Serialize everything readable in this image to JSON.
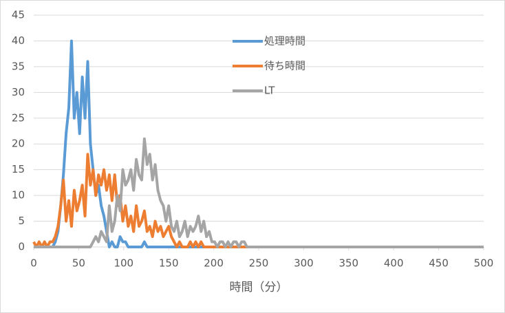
{
  "chart_data": {
    "type": "line",
    "xlabel": "時間（分）",
    "x": [
      0,
      3,
      6,
      9,
      12,
      15,
      18,
      21,
      24,
      27,
      30,
      33,
      36,
      39,
      42,
      45,
      48,
      51,
      54,
      57,
      60,
      63,
      66,
      69,
      72,
      75,
      78,
      81,
      84,
      87,
      90,
      93,
      96,
      99,
      102,
      105,
      108,
      111,
      114,
      117,
      120,
      123,
      126,
      129,
      132,
      135,
      138,
      141,
      144,
      147,
      150,
      153,
      156,
      159,
      162,
      165,
      168,
      171,
      174,
      177,
      180,
      183,
      186,
      189,
      192,
      195,
      198,
      201,
      204,
      207,
      210,
      213,
      216,
      219,
      222,
      225,
      228,
      231,
      234,
      237,
      240,
      500
    ],
    "series": [
      {
        "name": "処理時間",
        "color": "#5b9bd5",
        "values": [
          0,
          0,
          0,
          0,
          0,
          0,
          0,
          0,
          1,
          3,
          8,
          14,
          22,
          27,
          40,
          25,
          30,
          22,
          33,
          25,
          36,
          20,
          15,
          10,
          12,
          8,
          6,
          3,
          0,
          1,
          0,
          0,
          2,
          1,
          1,
          0,
          0,
          0,
          0,
          0,
          0,
          1,
          0,
          0,
          0,
          0,
          0,
          0,
          0,
          0,
          0,
          0,
          0,
          0,
          0,
          0,
          0,
          0,
          0,
          0,
          0,
          0,
          0,
          0,
          0,
          0,
          0,
          0,
          0,
          0,
          0,
          0,
          0,
          0,
          0,
          0,
          0,
          0,
          0,
          0,
          0,
          0
        ]
      },
      {
        "name": "待ち時間",
        "color": "#ed7d31",
        "values": [
          1,
          0,
          1,
          0,
          1,
          0,
          1,
          1,
          2,
          4,
          8,
          13,
          5,
          9,
          4,
          11,
          7,
          9,
          12,
          6,
          18,
          12,
          15,
          10,
          14,
          12,
          15,
          11,
          14,
          9,
          14,
          8,
          10,
          5,
          8,
          4,
          6,
          3,
          8,
          4,
          5,
          7,
          3,
          4,
          2,
          5,
          3,
          4,
          2,
          3,
          4,
          2,
          1,
          0,
          1,
          0,
          0,
          0,
          1,
          0,
          1,
          0,
          1,
          0,
          0,
          0,
          0,
          0,
          0,
          0,
          0,
          0,
          0,
          0,
          0,
          0,
          0,
          0,
          0,
          0,
          0,
          0
        ]
      },
      {
        "name": "LT",
        "color": "#a5a5a5",
        "values": [
          0,
          0,
          0,
          0,
          0,
          0,
          0,
          0,
          0,
          0,
          0,
          0,
          0,
          0,
          0,
          0,
          0,
          0,
          0,
          0,
          0,
          0,
          1,
          2,
          1,
          3,
          2,
          1,
          8,
          3,
          5,
          10,
          7,
          15,
          12,
          13,
          15,
          11,
          17,
          14,
          13,
          21,
          16,
          18,
          13,
          16,
          11,
          9,
          8,
          5,
          8,
          4,
          3,
          5,
          2,
          3,
          5,
          2,
          4,
          3,
          4,
          6,
          3,
          5,
          2,
          3,
          1,
          1,
          0,
          1,
          1,
          0,
          1,
          0,
          1,
          1,
          0,
          1,
          1,
          0,
          0,
          0
        ]
      }
    ],
    "xlim": [
      0,
      500
    ],
    "xticks": [
      0,
      50,
      100,
      150,
      200,
      250,
      300,
      350,
      400,
      450,
      500
    ],
    "ylim": [
      0,
      45
    ],
    "yticks": [
      0,
      5,
      10,
      15,
      20,
      25,
      30,
      35,
      40,
      45
    ],
    "grid": true
  }
}
